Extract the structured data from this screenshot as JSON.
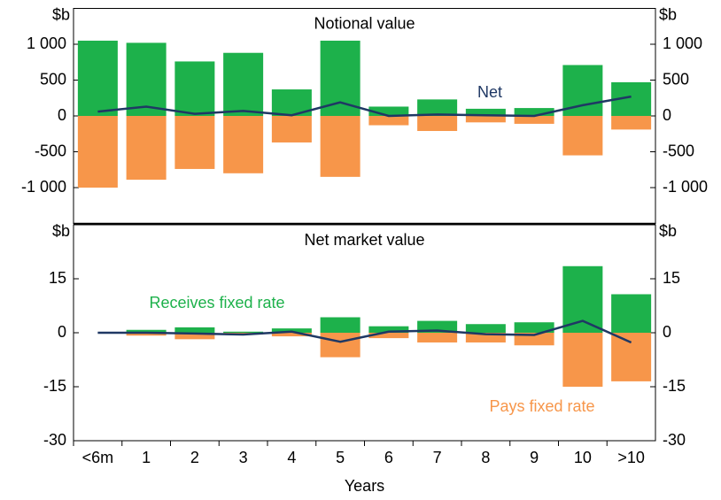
{
  "chart_data": [
    {
      "type": "bar",
      "title": "Notional value",
      "ylabel": "$b",
      "ylim": [
        -1500,
        1500
      ],
      "yticks": [
        {
          "value": 1000,
          "label": "1 000"
        },
        500,
        0,
        -500,
        {
          "value": -1000,
          "label": "-1 000"
        }
      ],
      "grid": false,
      "series": [
        {
          "color": "#1db14b",
          "values": [
            1050,
            1020,
            760,
            880,
            370,
            1050,
            130,
            230,
            100,
            110,
            710,
            470
          ]
        },
        {
          "color": "#f7964a",
          "values": [
            -1000,
            -890,
            -740,
            -800,
            -370,
            -850,
            -130,
            -210,
            -90,
            -110,
            -550,
            -190
          ]
        },
        {
          "name": "Net",
          "color": "#1f3864",
          "type": "line",
          "values": [
            60,
            130,
            30,
            70,
            10,
            190,
            0,
            20,
            10,
            0,
            150,
            270
          ]
        }
      ]
    },
    {
      "type": "bar",
      "title": "Net market value",
      "ylabel": "$b",
      "xlabel": "Years",
      "categories": [
        "<6m",
        "1",
        "2",
        "3",
        "4",
        "5",
        "6",
        "7",
        "8",
        "9",
        "10",
        ">10"
      ],
      "ylim": [
        -30,
        30
      ],
      "yticks": [
        15,
        0,
        -15,
        -30
      ],
      "grid": false,
      "series": [
        {
          "name": "Receives fixed rate",
          "color": "#1db14b",
          "values": [
            0,
            0.8,
            1.5,
            0.3,
            1.2,
            4.3,
            1.8,
            3.3,
            2.4,
            2.9,
            18.5,
            10.7
          ]
        },
        {
          "name": "Pays fixed rate",
          "color": "#f7964a",
          "values": [
            0,
            -0.8,
            -1.8,
            -0.5,
            -1,
            -6.8,
            -1.5,
            -2.7,
            -2.7,
            -3.5,
            -15,
            -13.5
          ]
        },
        {
          "color": "#1f3864",
          "type": "line",
          "values": [
            0,
            0,
            -0.2,
            -0.5,
            0.3,
            -2.5,
            0.3,
            0.6,
            -0.4,
            -0.6,
            3.3,
            -2.7
          ]
        }
      ]
    }
  ]
}
